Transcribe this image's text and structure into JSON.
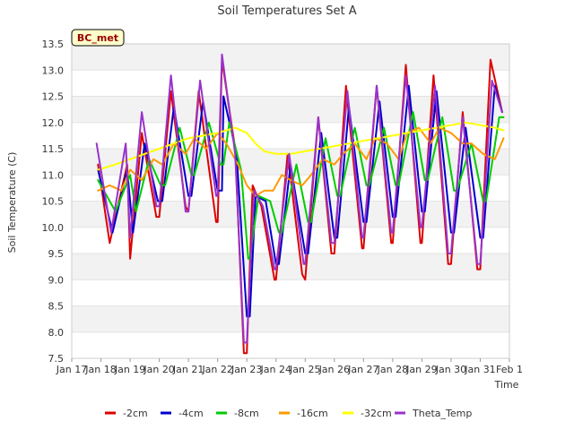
{
  "chart_data": {
    "type": "line",
    "title": "Soil Temperatures Set A",
    "xlabel": "Time",
    "ylabel": "Soil Temperature (C)",
    "badge": "BC_met",
    "xlim": [
      0,
      15
    ],
    "ylim": [
      7.5,
      13.5
    ],
    "x_ticks": [
      {
        "x": 0,
        "label": "Jan 17"
      },
      {
        "x": 1,
        "label": "Jan 18"
      },
      {
        "x": 2,
        "label": "Jan 19"
      },
      {
        "x": 3,
        "label": "Jan 20"
      },
      {
        "x": 4,
        "label": "Jan 21"
      },
      {
        "x": 5,
        "label": "Jan 22"
      },
      {
        "x": 6,
        "label": "Jan 23"
      },
      {
        "x": 7,
        "label": "Jan 24"
      },
      {
        "x": 8,
        "label": "Jan 25"
      },
      {
        "x": 9,
        "label": "Jan 26"
      },
      {
        "x": 10,
        "label": "Jan 27"
      },
      {
        "x": 11,
        "label": "Jan 28"
      },
      {
        "x": 12,
        "label": "Jan 29"
      },
      {
        "x": 13,
        "label": "Jan 30"
      },
      {
        "x": 14,
        "label": "Jan 31"
      },
      {
        "x": 15,
        "label": "Feb 1"
      }
    ],
    "y_ticks": [
      {
        "y": 7.5,
        "label": "7.5"
      },
      {
        "y": 8.0,
        "label": "8.0"
      },
      {
        "y": 8.5,
        "label": "8.5"
      },
      {
        "y": 9.0,
        "label": "9.0"
      },
      {
        "y": 9.5,
        "label": "9.5"
      },
      {
        "y": 10.0,
        "label": "10.0"
      },
      {
        "y": 10.5,
        "label": "10.5"
      },
      {
        "y": 11.0,
        "label": "11.0"
      },
      {
        "y": 11.5,
        "label": "11.5"
      },
      {
        "y": 12.0,
        "label": "12.0"
      },
      {
        "y": 12.5,
        "label": "12.5"
      },
      {
        "y": 13.0,
        "label": "13.0"
      },
      {
        "y": 13.5,
        "label": "13.5"
      }
    ],
    "grid": "horizontal bands",
    "legend_position": "bottom",
    "series": [
      {
        "name": "-2cm",
        "color": "#dd0000",
        "x": [
          0.9,
          1.3,
          1.9,
          2.0,
          2.4,
          2.9,
          3.0,
          3.4,
          3.9,
          4.0,
          4.35,
          4.95,
          5.0,
          5.15,
          5.6,
          5.9,
          6.0,
          6.2,
          6.5,
          6.95,
          7.0,
          7.4,
          7.9,
          8.0,
          8.45,
          8.9,
          9.0,
          9.4,
          9.95,
          10.0,
          10.45,
          10.95,
          11.0,
          11.45,
          11.95,
          12.0,
          12.4,
          12.9,
          13.0,
          13.4,
          13.9,
          14.0,
          14.35,
          14.75
        ],
        "y": [
          11.2,
          9.7,
          11.2,
          9.4,
          11.8,
          10.2,
          10.2,
          12.6,
          10.4,
          10.3,
          12.6,
          10.1,
          10.1,
          13.2,
          11.5,
          7.6,
          7.6,
          10.8,
          10.4,
          9.0,
          9.0,
          11.4,
          9.1,
          9.0,
          12.1,
          9.5,
          9.5,
          12.7,
          9.6,
          9.6,
          12.7,
          9.7,
          9.7,
          13.1,
          9.7,
          9.7,
          12.9,
          9.3,
          9.3,
          12.2,
          9.2,
          9.2,
          13.2,
          12.2
        ]
      },
      {
        "name": "-4cm",
        "color": "#0000cc",
        "x": [
          0.9,
          1.4,
          1.9,
          2.1,
          2.5,
          2.95,
          3.1,
          3.5,
          4.0,
          4.1,
          4.5,
          5.0,
          5.15,
          5.2,
          5.65,
          6.0,
          6.1,
          6.3,
          6.65,
          7.0,
          7.1,
          7.5,
          8.0,
          8.1,
          8.55,
          9.0,
          9.1,
          9.5,
          10.0,
          10.1,
          10.55,
          11.0,
          11.1,
          11.55,
          12.0,
          12.1,
          12.5,
          13.0,
          13.1,
          13.5,
          14.0,
          14.1,
          14.5,
          14.75
        ],
        "y": [
          11.1,
          9.9,
          11.1,
          9.9,
          11.6,
          10.5,
          10.5,
          12.3,
          10.6,
          10.6,
          12.4,
          10.7,
          10.7,
          12.5,
          11.4,
          8.3,
          8.3,
          10.6,
          10.5,
          9.3,
          9.3,
          11.2,
          9.5,
          9.5,
          11.8,
          9.8,
          9.8,
          12.3,
          10.1,
          10.1,
          12.4,
          10.2,
          10.2,
          12.7,
          10.3,
          10.3,
          12.6,
          9.9,
          9.9,
          11.9,
          9.8,
          9.8,
          12.7,
          12.2
        ]
      },
      {
        "name": "-8cm",
        "color": "#00cc00",
        "x": [
          0.9,
          1.5,
          2.0,
          2.2,
          2.65,
          3.05,
          3.2,
          3.7,
          4.1,
          4.2,
          4.7,
          5.1,
          5.2,
          5.4,
          5.8,
          6.05,
          6.1,
          6.4,
          6.8,
          7.1,
          7.2,
          7.7,
          8.1,
          8.2,
          8.7,
          9.1,
          9.2,
          9.7,
          10.1,
          10.2,
          10.7,
          11.1,
          11.2,
          11.7,
          12.1,
          12.2,
          12.7,
          13.1,
          13.2,
          13.7,
          14.1,
          14.2,
          14.65,
          14.8
        ],
        "y": [
          10.9,
          10.3,
          11.0,
          10.3,
          11.3,
          10.8,
          10.8,
          11.9,
          11.0,
          11.0,
          12.0,
          11.2,
          11.2,
          12.0,
          11.1,
          9.4,
          9.4,
          10.6,
          10.5,
          9.9,
          9.9,
          11.2,
          10.1,
          10.1,
          11.7,
          10.6,
          10.6,
          11.9,
          10.8,
          10.8,
          11.9,
          10.8,
          10.8,
          12.2,
          10.9,
          10.9,
          12.1,
          10.7,
          10.7,
          11.6,
          10.5,
          10.5,
          12.1,
          12.1
        ]
      },
      {
        "name": "-16cm",
        "color": "#ff9900",
        "x": [
          0.9,
          1.3,
          1.7,
          2.0,
          2.4,
          2.8,
          3.1,
          3.5,
          3.9,
          4.2,
          4.6,
          5.0,
          5.3,
          5.7,
          6.0,
          6.3,
          6.6,
          6.9,
          7.2,
          7.5,
          7.9,
          8.2,
          8.6,
          9.0,
          9.3,
          9.7,
          10.1,
          10.4,
          10.8,
          11.2,
          11.5,
          11.9,
          12.3,
          12.6,
          13.0,
          13.4,
          13.7,
          14.1,
          14.5,
          14.8
        ],
        "y": [
          10.7,
          10.8,
          10.7,
          11.1,
          10.9,
          11.3,
          11.2,
          11.6,
          11.4,
          11.7,
          11.5,
          11.8,
          11.6,
          11.2,
          10.8,
          10.6,
          10.7,
          10.7,
          11.0,
          10.9,
          10.8,
          11.0,
          11.3,
          11.2,
          11.4,
          11.6,
          11.3,
          11.7,
          11.6,
          11.3,
          11.8,
          11.9,
          11.6,
          11.9,
          11.8,
          11.6,
          11.6,
          11.4,
          11.3,
          11.7
        ]
      },
      {
        "name": "-32cm",
        "color": "#ffff00",
        "x": [
          0.9,
          1.5,
          2.0,
          2.5,
          3.0,
          3.5,
          4.0,
          4.5,
          5.0,
          5.3,
          5.6,
          6.0,
          6.3,
          6.6,
          7.0,
          7.5,
          8.0,
          8.5,
          9.0,
          9.5,
          10.0,
          10.5,
          11.0,
          11.5,
          12.0,
          12.5,
          13.0,
          13.5,
          14.0,
          14.5,
          14.8
        ],
        "y": [
          11.1,
          11.2,
          11.3,
          11.4,
          11.5,
          11.6,
          11.7,
          11.75,
          11.8,
          11.85,
          11.9,
          11.8,
          11.6,
          11.45,
          11.4,
          11.4,
          11.45,
          11.5,
          11.55,
          11.6,
          11.65,
          11.7,
          11.75,
          11.8,
          11.85,
          11.9,
          11.95,
          12.0,
          11.95,
          11.9,
          11.85
        ]
      },
      {
        "name": "Theta_Temp",
        "color": "#9933cc",
        "x": [
          0.85,
          1.35,
          1.85,
          2.0,
          2.4,
          2.9,
          3.0,
          3.4,
          3.9,
          4.0,
          4.4,
          4.95,
          5.0,
          5.15,
          5.6,
          5.9,
          6.0,
          6.25,
          6.55,
          6.95,
          7.0,
          7.45,
          7.95,
          8.0,
          8.45,
          8.9,
          9.0,
          9.45,
          9.95,
          10.0,
          10.45,
          10.95,
          11.0,
          11.45,
          11.95,
          12.0,
          12.45,
          12.9,
          13.0,
          13.4,
          13.9,
          14.0,
          14.4,
          14.75
        ],
        "y": [
          11.6,
          9.9,
          11.6,
          9.8,
          12.2,
          10.4,
          10.4,
          12.9,
          10.3,
          10.3,
          12.8,
          10.6,
          10.6,
          13.3,
          11.4,
          7.8,
          7.8,
          10.7,
          10.4,
          9.2,
          9.2,
          11.4,
          9.3,
          9.3,
          12.1,
          9.7,
          9.7,
          12.6,
          9.8,
          9.8,
          12.7,
          9.9,
          9.9,
          12.9,
          10.0,
          10.0,
          12.7,
          9.5,
          9.5,
          12.1,
          9.3,
          9.3,
          12.8,
          12.2
        ]
      }
    ]
  }
}
